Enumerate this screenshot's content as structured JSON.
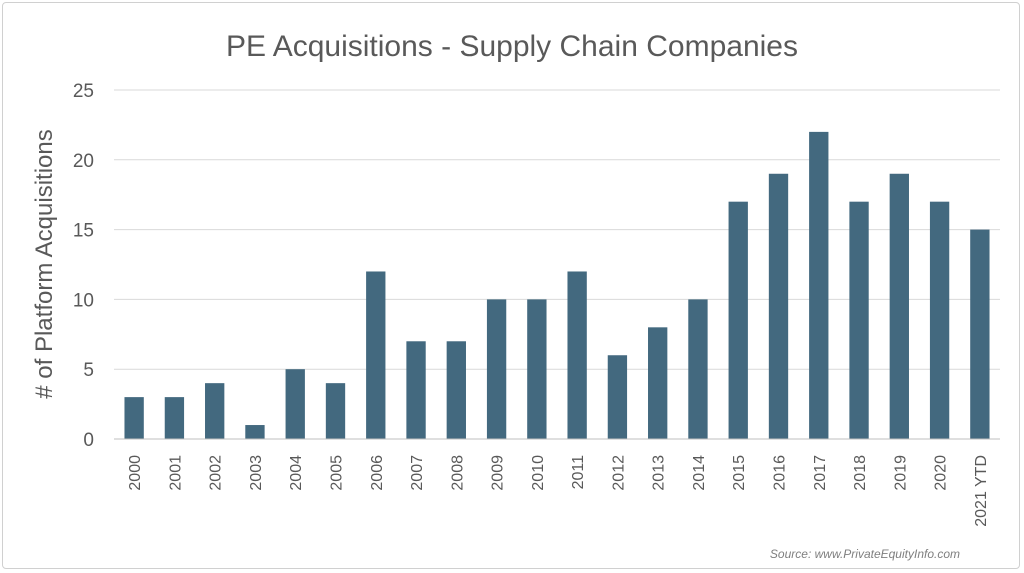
{
  "chart_data": {
    "type": "bar",
    "title": "PE Acquisitions - Supply Chain Companies",
    "ylabel": "# of Platform Acquisitions",
    "xlabel": "",
    "ylim": [
      0,
      25
    ],
    "yticks": [
      "0",
      "5",
      "10",
      "15",
      "20",
      "25"
    ],
    "grid": true,
    "bar_color": "#43697f",
    "categories": [
      "2000",
      "2001",
      "2002",
      "2003",
      "2004",
      "2005",
      "2006",
      "2007",
      "2008",
      "2009",
      "2010",
      "2011",
      "2012",
      "2013",
      "2014",
      "2015",
      "2016",
      "2017",
      "2018",
      "2019",
      "2020",
      "2021 YTD"
    ],
    "values": [
      3,
      3,
      4,
      1,
      5,
      4,
      12,
      7,
      7,
      10,
      10,
      12,
      6,
      8,
      10,
      17,
      19,
      22,
      17,
      19,
      17,
      15
    ],
    "source": "Source: www.PrivateEquityInfo.com"
  }
}
